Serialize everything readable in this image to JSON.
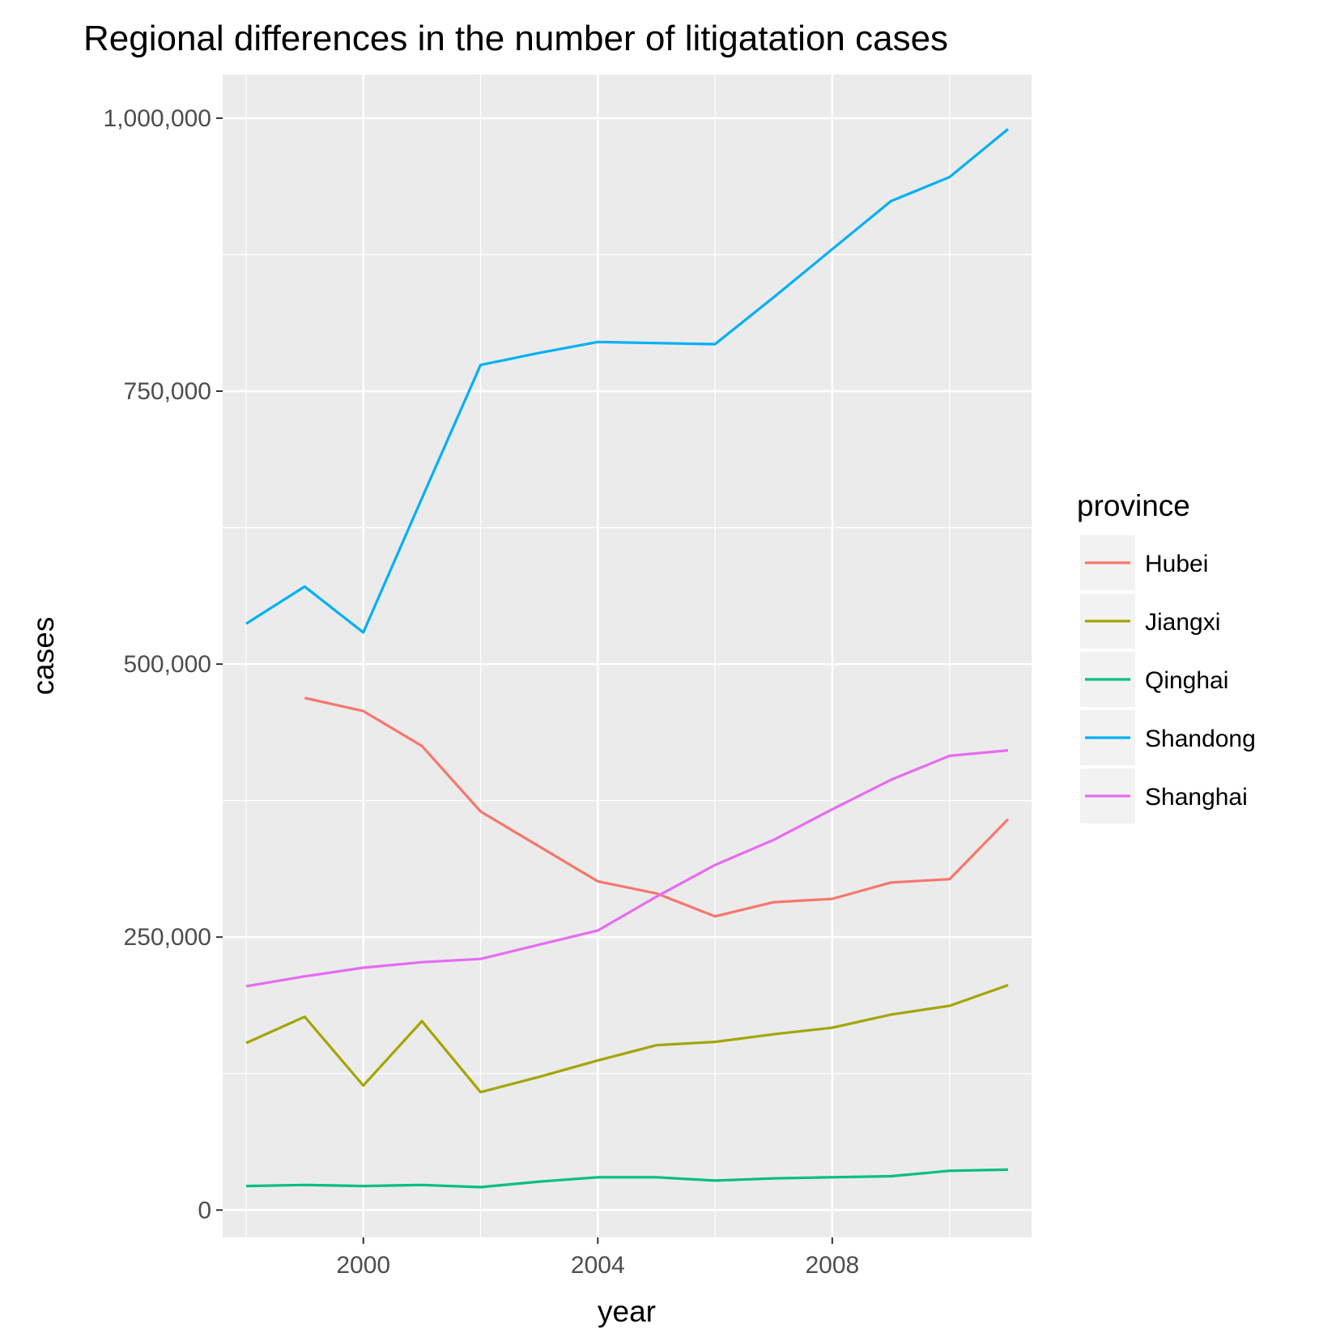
{
  "chart_data": {
    "type": "line",
    "title": "Regional differences in the number of litigatation cases",
    "xlabel": "year",
    "ylabel": "cases",
    "xlim": [
      1997.6,
      2011.4
    ],
    "ylim": [
      -25000,
      1040000
    ],
    "x_ticks": [
      2000,
      2004,
      2008
    ],
    "x_tick_labels": [
      "2000",
      "2004",
      "2008"
    ],
    "y_ticks": [
      0,
      250000,
      500000,
      750000,
      1000000
    ],
    "y_tick_labels": [
      "0",
      "250,000",
      "500,000",
      "750,000",
      "1,000,000"
    ],
    "grid": true,
    "legend_title": "province",
    "legend_position": "right",
    "series": [
      {
        "name": "Hubei",
        "color": "#F8766D",
        "x": [
          1999,
          2000,
          2001,
          2002,
          2003,
          2004,
          2005,
          2006,
          2007,
          2008,
          2009,
          2010,
          2011
        ],
        "values": [
          469000,
          457000,
          425000,
          365000,
          333000,
          301000,
          290000,
          269000,
          282000,
          285000,
          300000,
          303000,
          358000
        ]
      },
      {
        "name": "Jiangxi",
        "color": "#A3A500",
        "x": [
          1998,
          1999,
          2000,
          2001,
          2002,
          2003,
          2004,
          2005,
          2006,
          2007,
          2008,
          2009,
          2010,
          2011
        ],
        "values": [
          153000,
          177000,
          114000,
          173000,
          108000,
          122000,
          137000,
          151000,
          154000,
          161000,
          167000,
          179000,
          187000,
          206000
        ]
      },
      {
        "name": "Qinghai",
        "color": "#00BF7D",
        "x": [
          1998,
          1999,
          2000,
          2001,
          2002,
          2003,
          2004,
          2005,
          2006,
          2007,
          2008,
          2009,
          2010,
          2011
        ],
        "values": [
          22000,
          23000,
          22000,
          23000,
          21000,
          26000,
          30000,
          30000,
          27000,
          29000,
          30000,
          31000,
          36000,
          37000
        ]
      },
      {
        "name": "Shandong",
        "color": "#00B0F6",
        "x": [
          1998,
          1999,
          2000,
          2001,
          2002,
          2003,
          2004,
          2005,
          2006,
          2007,
          2008,
          2009,
          2010,
          2011
        ],
        "values": [
          537000,
          571000,
          529000,
          652000,
          774000,
          785000,
          795000,
          794000,
          793000,
          836000,
          880000,
          924000,
          946000,
          990000
        ]
      },
      {
        "name": "Shanghai",
        "color": "#E76BF3",
        "x": [
          1998,
          1999,
          2000,
          2001,
          2002,
          2003,
          2004,
          2005,
          2006,
          2007,
          2008,
          2009,
          2010,
          2011
        ],
        "values": [
          205000,
          214000,
          222000,
          227000,
          230000,
          243000,
          256000,
          287000,
          316000,
          339000,
          367000,
          394000,
          416000,
          421000
        ]
      }
    ]
  }
}
